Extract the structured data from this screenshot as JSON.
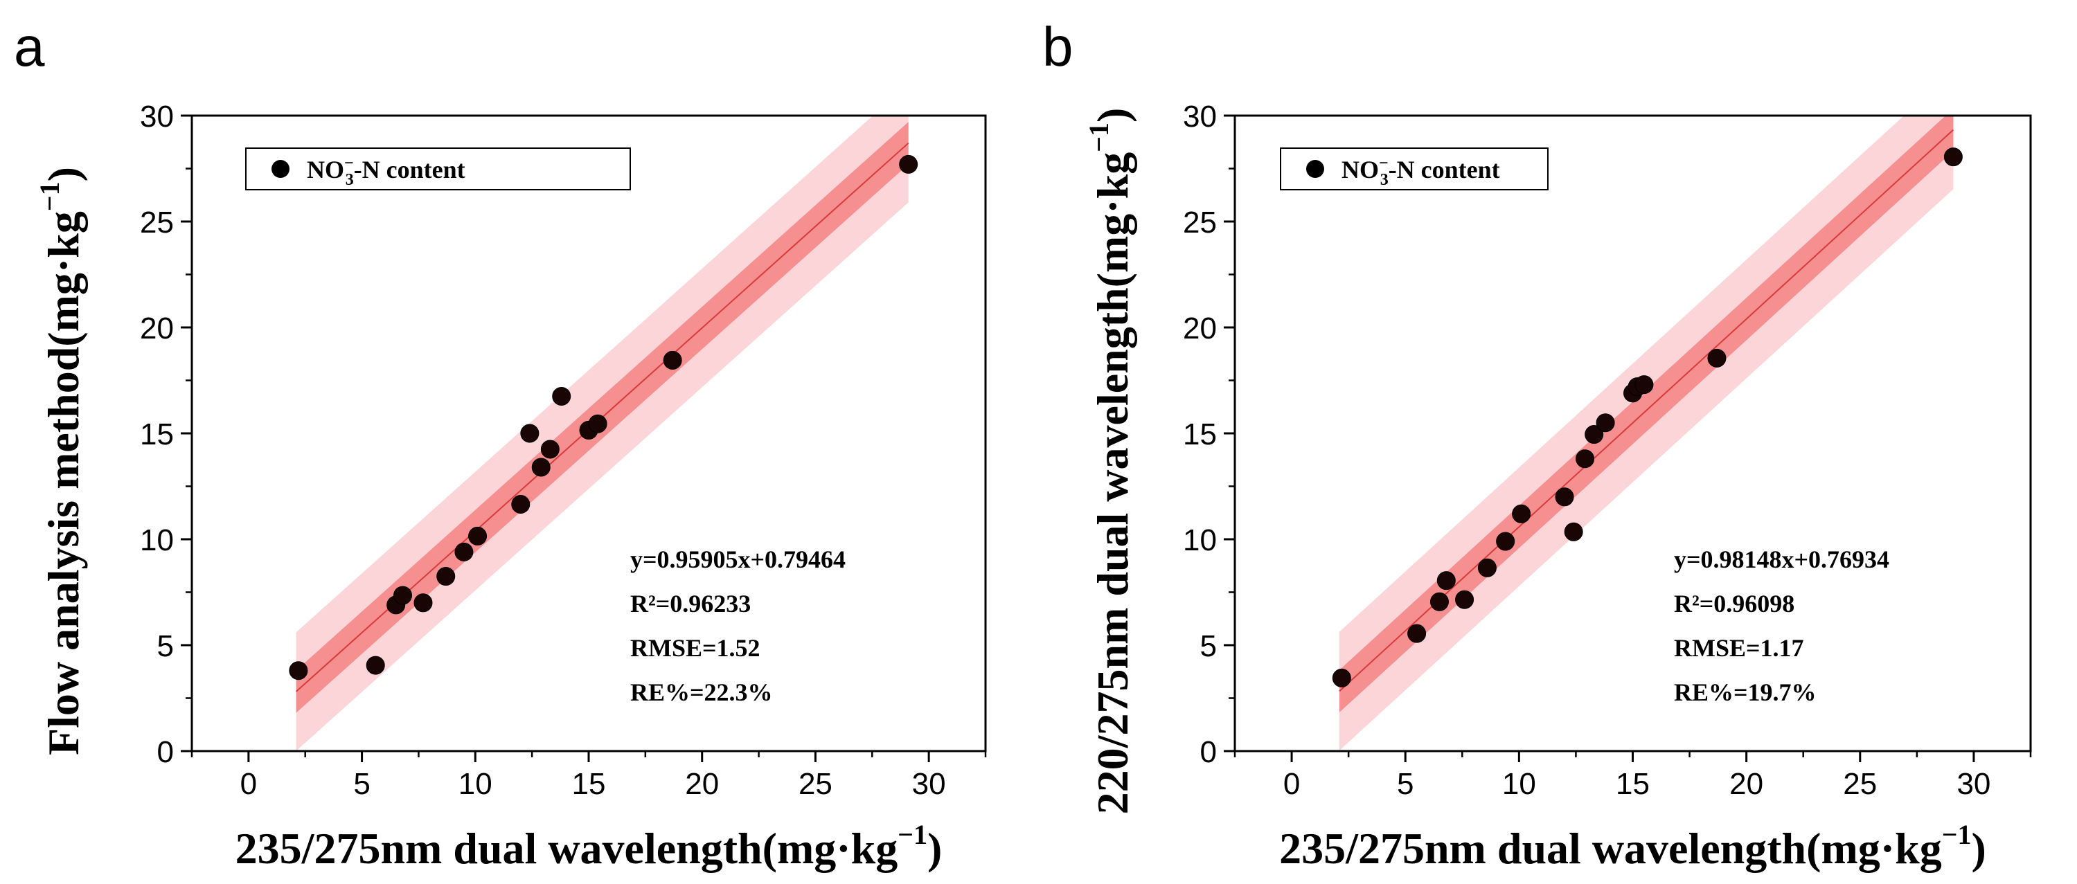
{
  "chart_data": [
    {
      "panel_label": "a",
      "type": "scatter",
      "xlabel": "235/275nm dual wavelength(mg·kg",
      "ylabel": "Flow analysis method(mg·kg",
      "unit_exponent": "−1",
      "xlim": [
        -2.5,
        32.5
      ],
      "ylim": [
        0,
        30
      ],
      "xticks": [
        0,
        5,
        10,
        15,
        20,
        25,
        30
      ],
      "yticks": [
        0,
        5,
        10,
        15,
        20,
        25,
        30
      ],
      "x_tick_labels": [
        "0",
        "5",
        "10",
        "15",
        "20",
        "25",
        "30"
      ],
      "y_tick_labels": [
        "0",
        "5",
        "10",
        "15",
        "20",
        "25",
        "30"
      ],
      "legend": {
        "base": "NO",
        "sub": "3",
        "sup": "−",
        "rest": "-N content",
        "placement": "top-left"
      },
      "fit": {
        "slope": 0.95905,
        "intercept": 0.79464,
        "x_range": [
          2.1,
          29.1
        ],
        "conf_band": 1.0,
        "pred_band": 2.8
      },
      "stats": [
        "y=0.95905x+0.79464",
        "R²=0.96233",
        "RMSE=1.52",
        "RE%=22.3%"
      ],
      "points": [
        {
          "x": 2.2,
          "y": 3.8
        },
        {
          "x": 5.6,
          "y": 4.05
        },
        {
          "x": 6.5,
          "y": 6.9
        },
        {
          "x": 6.8,
          "y": 7.35
        },
        {
          "x": 7.7,
          "y": 7.0
        },
        {
          "x": 8.7,
          "y": 8.25
        },
        {
          "x": 9.5,
          "y": 9.4
        },
        {
          "x": 10.1,
          "y": 10.15
        },
        {
          "x": 12.0,
          "y": 11.65
        },
        {
          "x": 12.4,
          "y": 15.0
        },
        {
          "x": 12.9,
          "y": 13.4
        },
        {
          "x": 13.3,
          "y": 14.25
        },
        {
          "x": 13.8,
          "y": 16.75
        },
        {
          "x": 15.0,
          "y": 15.15
        },
        {
          "x": 15.4,
          "y": 15.45
        },
        {
          "x": 18.7,
          "y": 18.45
        },
        {
          "x": 29.1,
          "y": 27.7
        }
      ]
    },
    {
      "panel_label": "b",
      "type": "scatter",
      "xlabel": "235/275nm dual wavelength(mg·kg",
      "ylabel": "220/275nm dual wavelength(mg·kg",
      "unit_exponent": "−1",
      "xlim": [
        -2.5,
        32.5
      ],
      "ylim": [
        0,
        30
      ],
      "xticks": [
        0,
        5,
        10,
        15,
        20,
        25,
        30
      ],
      "yticks": [
        0,
        5,
        10,
        15,
        20,
        25,
        30
      ],
      "x_tick_labels": [
        "0",
        "5",
        "10",
        "15",
        "20",
        "25",
        "30"
      ],
      "y_tick_labels": [
        "0",
        "5",
        "10",
        "15",
        "20",
        "25",
        "30"
      ],
      "legend": {
        "base": "NO",
        "sub": "3",
        "sup": "−",
        "rest": "-N content",
        "placement": "top-left"
      },
      "fit": {
        "slope": 0.98148,
        "intercept": 0.76934,
        "x_range": [
          2.1,
          29.1
        ],
        "conf_band": 1.0,
        "pred_band": 2.8
      },
      "stats": [
        "y=0.98148x+0.76934",
        "R²=0.96098",
        "RMSE=1.17",
        "RE%=19.7%"
      ],
      "points": [
        {
          "x": 2.2,
          "y": 3.45
        },
        {
          "x": 5.5,
          "y": 5.55
        },
        {
          "x": 6.5,
          "y": 7.05
        },
        {
          "x": 6.8,
          "y": 8.05
        },
        {
          "x": 7.6,
          "y": 7.15
        },
        {
          "x": 8.6,
          "y": 8.65
        },
        {
          "x": 9.4,
          "y": 9.9
        },
        {
          "x": 10.1,
          "y": 11.2
        },
        {
          "x": 12.0,
          "y": 12.0
        },
        {
          "x": 12.4,
          "y": 10.35
        },
        {
          "x": 12.9,
          "y": 13.8
        },
        {
          "x": 13.3,
          "y": 14.95
        },
        {
          "x": 13.8,
          "y": 15.5
        },
        {
          "x": 15.0,
          "y": 16.9
        },
        {
          "x": 15.2,
          "y": 17.2
        },
        {
          "x": 15.5,
          "y": 17.3
        },
        {
          "x": 18.7,
          "y": 18.55
        },
        {
          "x": 29.1,
          "y": 28.05
        }
      ]
    }
  ]
}
